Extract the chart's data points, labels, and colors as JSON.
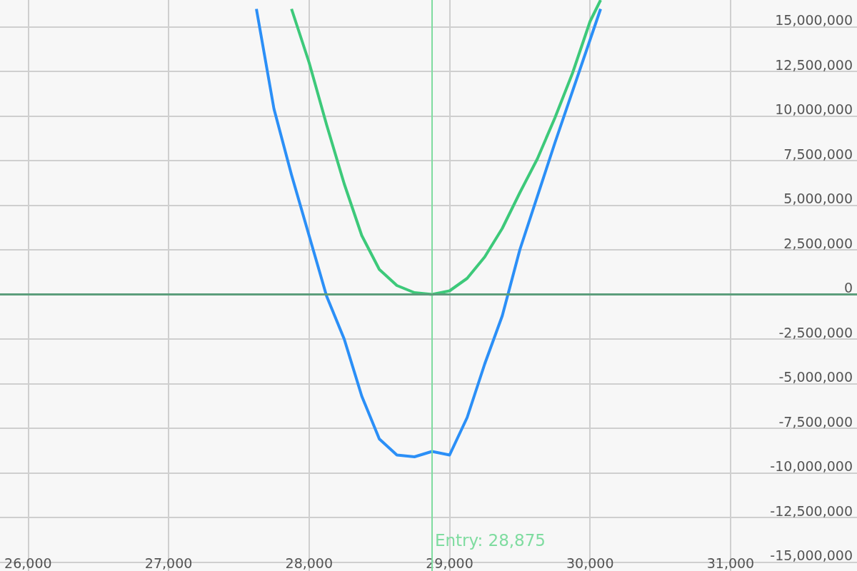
{
  "chart_data": {
    "type": "line",
    "series": [
      {
        "color": "#2b8ff7",
        "x": [
          27625,
          27750,
          27875,
          28000,
          28125,
          28250,
          28375,
          28500,
          28625,
          28750,
          28875,
          29000,
          29125,
          29250,
          29375,
          29500,
          29750,
          30075
        ],
        "values": [
          16000000,
          10400000,
          6700000,
          3300000,
          -100000,
          -2500000,
          -5700000,
          -8100000,
          -9000000,
          -9100000,
          -8800000,
          -9000000,
          -6900000,
          -3900000,
          -1200000,
          2500000,
          8500000,
          16000000
        ]
      },
      {
        "color": "#3dc97a",
        "x": [
          27875,
          28000,
          28125,
          28250,
          28375,
          28500,
          28625,
          28750,
          28875,
          29000,
          29125,
          29250,
          29375,
          29500,
          29625,
          29750,
          29875,
          30000,
          30075
        ],
        "values": [
          16000000,
          13000000,
          9500000,
          6200000,
          3300000,
          1400000,
          500000,
          100000,
          0,
          200000,
          900000,
          2100000,
          3700000,
          5700000,
          7600000,
          9900000,
          12400000,
          15300000,
          16500000
        ]
      }
    ],
    "xlim": [
      25800,
      31900
    ],
    "xticks": [
      {
        "value": 26000,
        "label": "26,000"
      },
      {
        "value": 27000,
        "label": "27,000"
      },
      {
        "value": 28000,
        "label": "28,000"
      },
      {
        "value": 29000,
        "label": "29,000"
      },
      {
        "value": 30000,
        "label": "30,000"
      },
      {
        "value": 31000,
        "label": "31,000"
      }
    ],
    "ylim": [
      -15500000,
      16500000
    ],
    "yticks": [
      {
        "value": -15000000,
        "label": "-15,000,000"
      },
      {
        "value": -12500000,
        "label": "-12,500,000"
      },
      {
        "value": -10000000,
        "label": "-10,000,000"
      },
      {
        "value": -7500000,
        "label": "-7,500,000"
      },
      {
        "value": -5000000,
        "label": "-5,000,000"
      },
      {
        "value": -2500000,
        "label": "-2,500,000"
      },
      0,
      {
        "value": 2500000,
        "label": "2,500,000"
      },
      {
        "value": 5000000,
        "label": "5,000,000"
      },
      {
        "value": 7500000,
        "label": "7,500,000"
      },
      {
        "value": 10000000,
        "label": "10,000,000"
      },
      {
        "value": 12500000,
        "label": "12,500,000"
      },
      {
        "value": 15000000,
        "label": "15,000,000"
      }
    ],
    "grid": true,
    "ref_lines": [
      {
        "axis": "x",
        "value": 28875,
        "label": "Entry: 28,875",
        "color": "#7fdca0"
      },
      {
        "axis": "y",
        "value": 0,
        "color": "#5c9e7c"
      }
    ]
  }
}
